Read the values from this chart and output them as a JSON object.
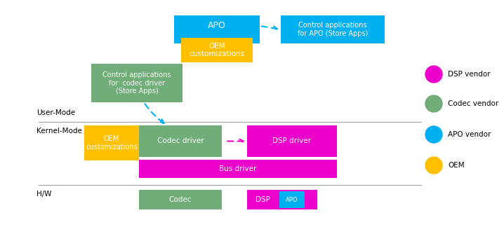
{
  "colors": {
    "magenta": "#EE00CC",
    "green": "#70AD78",
    "cyan": "#00B0F0",
    "orange": "#FFC000",
    "white": "#FFFFFF",
    "black": "#000000",
    "gray_line": "#A0A0A0"
  },
  "labels": {
    "user_mode": "User-Mode",
    "kernel_mode": "Kernel-Mode",
    "hw": "H/W",
    "apo": "APO",
    "oem_custom_top": "OEM\ncustomizations",
    "oem_custom_kernel": "OEM\ncustomizations",
    "control_apo": "Control applications\nfor APO (Store Apps)",
    "control_codec": "Control applications\nfor  codec driver\n(Store Apps)",
    "codec_driver": "Codec driver",
    "dsp_driver": "DSP driver",
    "bus_driver": "Bus driver",
    "codec": "Codec",
    "dsp": "DSP",
    "apo_hw": "APO",
    "legend_dsp": "DSP vendor",
    "legend_codec": "Codec vendor",
    "legend_apo": "APO vendor",
    "legend_oem": "OEM"
  },
  "layout": {
    "fig_w": 7.18,
    "fig_h": 3.54,
    "dpi": 100
  }
}
